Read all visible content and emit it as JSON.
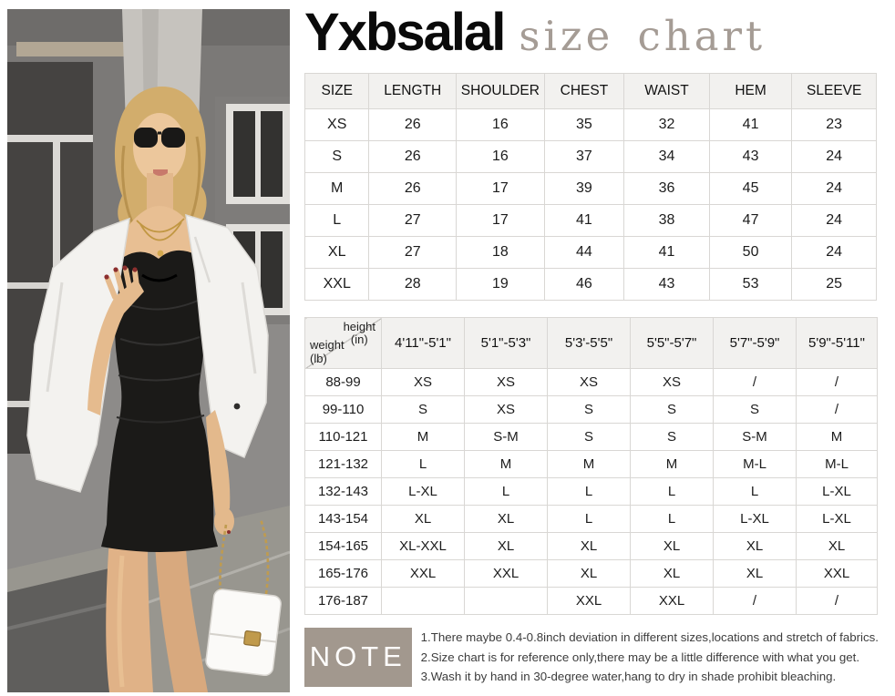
{
  "brand": {
    "name": "Yxbsalal",
    "title_suffix": "size chart"
  },
  "photo": {
    "alt": "model-wearing-black-ruched-mini-dress-with-white-blazer"
  },
  "size_table": {
    "headers": [
      "SIZE",
      "LENGTH",
      "SHOULDER",
      "CHEST",
      "WAIST",
      "HEM",
      "SLEEVE"
    ],
    "rows": [
      [
        "XS",
        "26",
        "16",
        "35",
        "32",
        "41",
        "23"
      ],
      [
        "S",
        "26",
        "16",
        "37",
        "34",
        "43",
        "24"
      ],
      [
        "M",
        "26",
        "17",
        "39",
        "36",
        "45",
        "24"
      ],
      [
        "L",
        "27",
        "17",
        "41",
        "38",
        "47",
        "24"
      ],
      [
        "XL",
        "27",
        "18",
        "44",
        "41",
        "50",
        "24"
      ],
      [
        "XXL",
        "28",
        "19",
        "46",
        "43",
        "53",
        "25"
      ]
    ]
  },
  "fit_table": {
    "corner": {
      "height_label": "height",
      "height_unit": "(in)",
      "weight_label": "weight",
      "weight_unit": "(lb)"
    },
    "height_headers": [
      "4'11\"-5'1\"",
      "5'1\"-5'3\"",
      "5'3'-5'5\"",
      "5'5\"-5'7\"",
      "5'7\"-5'9\"",
      "5'9\"-5'11\""
    ],
    "rows": [
      {
        "weight": "88-99",
        "sizes": [
          "XS",
          "XS",
          "XS",
          "XS",
          "/",
          "/"
        ]
      },
      {
        "weight": "99-110",
        "sizes": [
          "S",
          "XS",
          "S",
          "S",
          "S",
          "/"
        ]
      },
      {
        "weight": "110-121",
        "sizes": [
          "M",
          "S-M",
          "S",
          "S",
          "S-M",
          "M"
        ]
      },
      {
        "weight": "121-132",
        "sizes": [
          "L",
          "M",
          "M",
          "M",
          "M-L",
          "M-L"
        ]
      },
      {
        "weight": "132-143",
        "sizes": [
          "L-XL",
          "L",
          "L",
          "L",
          "L",
          "L-XL"
        ]
      },
      {
        "weight": "143-154",
        "sizes": [
          "XL",
          "XL",
          "L",
          "L",
          "L-XL",
          "L-XL"
        ]
      },
      {
        "weight": "154-165",
        "sizes": [
          "XL-XXL",
          "XL",
          "XL",
          "XL",
          "XL",
          "XL"
        ]
      },
      {
        "weight": "165-176",
        "sizes": [
          "XXL",
          "XXL",
          "XL",
          "XL",
          "XL",
          "XXL"
        ]
      },
      {
        "weight": "176-187",
        "sizes": [
          "",
          "",
          "XXL",
          "XXL",
          "/",
          "/"
        ]
      }
    ]
  },
  "note": {
    "label": "NOTE",
    "items": [
      "1.There maybe 0.4-0.8inch deviation in different sizes,locations and stretch of fabrics.",
      "2.Size chart is for reference only,there may be a little difference with what you get.",
      "3.Wash it by hand in 30-degree water,hang to dry in shade prohibit bleaching."
    ]
  },
  "colors": {
    "note_box": "#a2988e",
    "table_header_bg": "#f2f1ef",
    "table_border": "#d9d7d4",
    "title_suffix_gray": "#a59c95",
    "brand_black": "#0a0a0a"
  }
}
